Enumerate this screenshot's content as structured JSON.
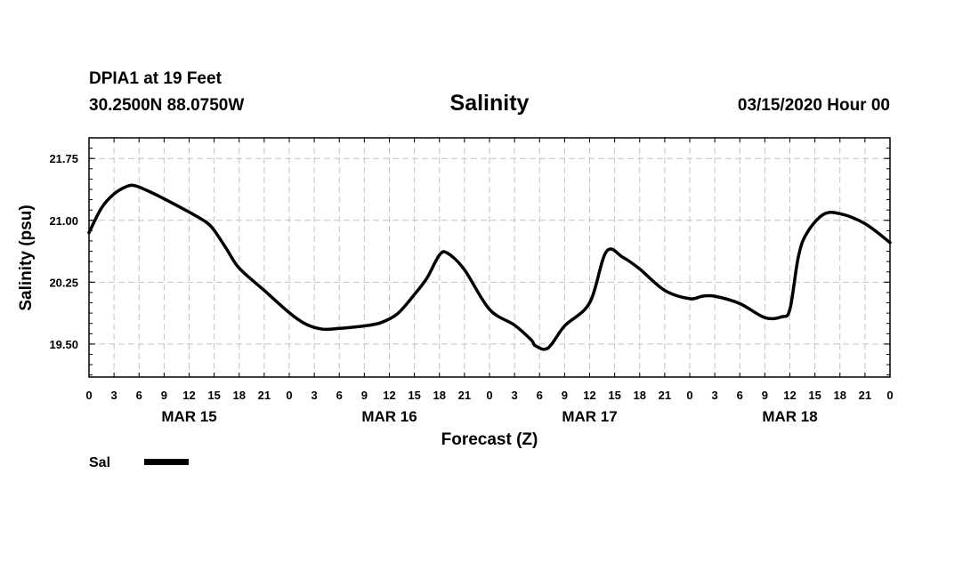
{
  "header": {
    "station": "DPIA1 at 19 Feet",
    "coords": "30.2500N 88.0750W",
    "datetime": "03/15/2020 Hour 00"
  },
  "chart_data": {
    "type": "line",
    "title": "Salinity",
    "xlabel": "Forecast (Z)",
    "ylabel": "Salinity (psu)",
    "x_unit": "forecast hours",
    "xlim": [
      0,
      96
    ],
    "ylim": [
      19.1,
      22.0
    ],
    "yticks": [
      "19.50",
      "20.25",
      "21.00",
      "21.75"
    ],
    "ytick_values": [
      19.5,
      20.25,
      21.0,
      21.75
    ],
    "xtick_labels": [
      "0",
      "3",
      "6",
      "9",
      "12",
      "15",
      "18",
      "21",
      "0",
      "3",
      "6",
      "9",
      "12",
      "15",
      "18",
      "21",
      "0",
      "3",
      "6",
      "9",
      "12",
      "15",
      "18",
      "21",
      "0",
      "3",
      "6",
      "9",
      "12",
      "15",
      "18",
      "21",
      "0"
    ],
    "date_labels": [
      {
        "label": "MAR 15",
        "hour": 12
      },
      {
        "label": "MAR 16",
        "hour": 36
      },
      {
        "label": "MAR 17",
        "hour": 60
      },
      {
        "label": "MAR 18",
        "hour": 84
      }
    ],
    "grid": true,
    "series": [
      {
        "name": "Sal",
        "color": "#000000",
        "x": [
          0,
          1.5,
          3,
          4.5,
          5.5,
          7,
          9,
          12,
          14,
          15,
          16.5,
          18,
          21,
          24,
          26,
          28,
          30,
          33,
          35,
          37,
          39,
          40.5,
          42,
          43,
          45,
          48,
          51,
          53,
          53.5,
          55,
          57,
          60,
          62,
          64,
          66,
          69,
          72,
          73.5,
          75,
          78,
          81,
          83,
          84,
          85,
          86,
          88,
          90,
          93,
          96
        ],
        "y": [
          20.85,
          21.15,
          21.32,
          21.41,
          21.42,
          21.36,
          21.26,
          21.1,
          20.98,
          20.88,
          20.65,
          20.42,
          20.15,
          19.88,
          19.74,
          19.68,
          19.69,
          19.72,
          19.76,
          19.87,
          20.1,
          20.3,
          20.58,
          20.6,
          20.4,
          19.92,
          19.73,
          19.55,
          19.48,
          19.45,
          19.72,
          20.0,
          20.62,
          20.55,
          20.41,
          20.15,
          20.05,
          20.08,
          20.08,
          19.99,
          19.82,
          19.83,
          19.92,
          20.55,
          20.84,
          21.07,
          21.08,
          20.96,
          20.73
        ]
      }
    ]
  },
  "legend": {
    "series_label": "Sal"
  }
}
